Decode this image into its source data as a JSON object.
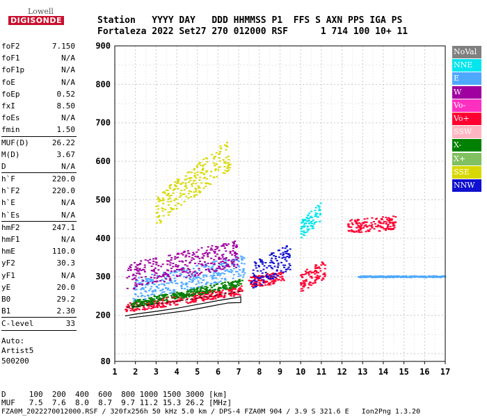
{
  "logo": {
    "line1": "Lowell",
    "line2": "DIGISONDE"
  },
  "header": {
    "labels": "Station   YYYY DAY   DDD HHMMSS P1  FFS S AXN PPS IGA PS",
    "values": "Fortaleza 2022 Set27 270 012000 RSF      1 714 100 10+ 11"
  },
  "params": [
    {
      "name": "foF2",
      "value": "7.150"
    },
    {
      "name": "foF1",
      "value": "N/A"
    },
    {
      "name": "foF1p",
      "value": "N/A"
    },
    {
      "name": "foE",
      "value": "N/A"
    },
    {
      "name": "foEp",
      "value": "0.52"
    },
    {
      "name": "fxI",
      "value": "8.50"
    },
    {
      "name": "foEs",
      "value": "N/A"
    },
    {
      "name": "fmin",
      "value": "1.50"
    },
    {
      "sep": true
    },
    {
      "name": "MUF(D)",
      "value": "26.22"
    },
    {
      "name": "M(D)",
      "value": "3.67"
    },
    {
      "name": "D",
      "value": "N/A"
    },
    {
      "sep": true
    },
    {
      "name": "h`F",
      "value": "220.0"
    },
    {
      "name": "h`F2",
      "value": "220.0"
    },
    {
      "name": "h`E",
      "value": "N/A"
    },
    {
      "name": "h`Es",
      "value": "N/A"
    },
    {
      "sep": true
    },
    {
      "name": "hmF2",
      "value": "247.1"
    },
    {
      "name": "hmF1",
      "value": "N/A"
    },
    {
      "name": "hmE",
      "value": "110.0"
    },
    {
      "name": "yF2",
      "value": "30.3"
    },
    {
      "name": "yF1",
      "value": "N/A"
    },
    {
      "name": "yE",
      "value": "20.0"
    },
    {
      "name": "B0",
      "value": "29.2"
    },
    {
      "name": "B1",
      "value": "2.30"
    },
    {
      "sep": true
    },
    {
      "name": "C-level",
      "value": "33"
    },
    {
      "sep": true
    }
  ],
  "auto": {
    "line1": "Auto:",
    "line2": "Artist5",
    "line3": "500200"
  },
  "legend": [
    {
      "label": "NoVal",
      "color": "#808080"
    },
    {
      "label": "NNE",
      "color": "#00e5ee"
    },
    {
      "label": "E",
      "color": "#4fa8ff"
    },
    {
      "label": "W",
      "color": "#a000a0"
    },
    {
      "label": "Vo-",
      "color": "#ff30c0"
    },
    {
      "label": "Vo+",
      "color": "#ff0030"
    },
    {
      "label": "SSW",
      "color": "#ffb6c1"
    },
    {
      "label": "X-",
      "color": "#008000"
    },
    {
      "label": "X+",
      "color": "#80c060"
    },
    {
      "label": "SSE",
      "color": "#d8d800"
    },
    {
      "label": "NNW",
      "color": "#1010d0"
    }
  ],
  "footer": {
    "d_line": "D     100  200  400  600  800 1000 1500 3000 [km]",
    "muf_line": "MUF   7.5  7.6  8.0  8.7  9.7 11.2 15.3 26.2 [MHz]",
    "info_line": "FZA0M_2022270012000.RSF / 320fx256h 50 kHz 5.0 km / DPS-4 FZA0M 904 / 3.9 S 321.6 E   Ion2Png 1.3.20"
  },
  "chart_data": {
    "type": "scatter",
    "xlim": [
      1,
      17
    ],
    "ylim": [
      80,
      900
    ],
    "x_ticks": [
      1,
      2,
      3,
      4,
      5,
      6,
      7,
      8,
      9,
      10,
      11,
      12,
      13,
      14,
      15,
      16,
      17
    ],
    "y_ticks": [
      80,
      200,
      300,
      400,
      500,
      600,
      700,
      800,
      900
    ],
    "grid": true,
    "legend_position": "right",
    "echo_clusters": [
      {
        "series": "Vo+",
        "xrange": [
          1.5,
          7.2
        ],
        "h0": 218,
        "h1": 265,
        "spread": 12
      },
      {
        "series": "X-",
        "xrange": [
          1.8,
          7.2
        ],
        "h0": 228,
        "h1": 285,
        "spread": 10
      },
      {
        "series": "E",
        "xrange": [
          1.9,
          7.3
        ],
        "h0": 265,
        "h1": 330,
        "spread": 30
      },
      {
        "series": "W",
        "xrange": [
          1.6,
          7.0
        ],
        "h0": 300,
        "h1": 360,
        "spread": 35
      },
      {
        "series": "SSE",
        "xrange": [
          3.0,
          6.6
        ],
        "h0": 470,
        "h1": 620,
        "spread": 40
      },
      {
        "series": "Vo+",
        "xrange": [
          7.5,
          9.2
        ],
        "h0": 285,
        "h1": 300,
        "spread": 15
      },
      {
        "series": "NNW",
        "xrange": [
          7.6,
          9.5
        ],
        "h0": 300,
        "h1": 350,
        "spread": 35
      },
      {
        "series": "NNE",
        "xrange": [
          10.0,
          11.0
        ],
        "h0": 420,
        "h1": 470,
        "spread": 25
      },
      {
        "series": "Vo+",
        "xrange": [
          10.0,
          11.2
        ],
        "h0": 285,
        "h1": 320,
        "spread": 25
      },
      {
        "series": "Vo+",
        "xrange": [
          12.3,
          14.6
        ],
        "h0": 430,
        "h1": 440,
        "spread": 18
      },
      {
        "series": "E",
        "xrange": [
          12.8,
          17.0
        ],
        "h0": 300,
        "h1": 300,
        "spread": 2
      }
    ],
    "profile_curve": [
      [
        1.5,
        198
      ],
      [
        2,
        203
      ],
      [
        3,
        210
      ],
      [
        4,
        218
      ],
      [
        5,
        228
      ],
      [
        6,
        238
      ],
      [
        6.8,
        245
      ],
      [
        7.1,
        248
      ],
      [
        7.1,
        233
      ],
      [
        6.5,
        232
      ],
      [
        5.5,
        222
      ],
      [
        4.5,
        212
      ],
      [
        3.5,
        205
      ],
      [
        2.5,
        198
      ],
      [
        1.7,
        193
      ]
    ],
    "trace_curve": [
      [
        1.6,
        220
      ],
      [
        2.5,
        226
      ],
      [
        3.5,
        233
      ],
      [
        4.5,
        240
      ],
      [
        5.5,
        248
      ],
      [
        6.5,
        257
      ],
      [
        7.1,
        262
      ]
    ]
  }
}
